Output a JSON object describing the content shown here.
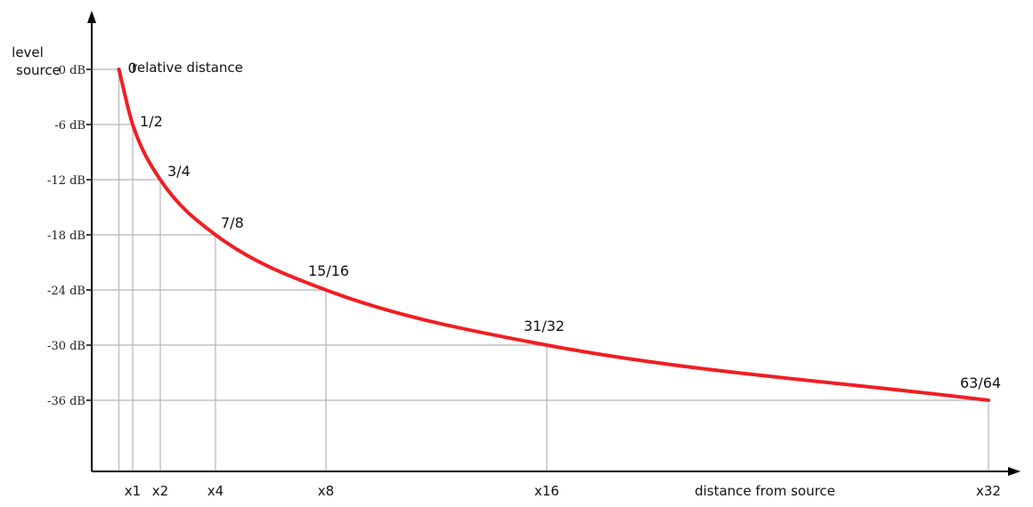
{
  "chart_data": {
    "type": "line",
    "title": "",
    "ylabel_top": "level",
    "ylabel_source": "source",
    "xlabel": "distance from source",
    "curve_label": "relative distance",
    "curve_color": "#f01e23",
    "grid": true,
    "y_ticks": [
      "0 dB",
      "-6 dB",
      "-12 dB",
      "-18 dB",
      "-24 dB",
      "-30 dB",
      "-36 dB"
    ],
    "x_ticks": [
      "x1",
      "x2",
      "x4",
      "x8",
      "x16",
      "x32"
    ],
    "points": [
      {
        "distance": 0.5,
        "level_db": 0,
        "label": "0"
      },
      {
        "distance": 1,
        "level_db": -6,
        "label": "1/2"
      },
      {
        "distance": 2,
        "level_db": -12,
        "label": "3/4"
      },
      {
        "distance": 4,
        "level_db": -18,
        "label": "7/8"
      },
      {
        "distance": 8,
        "level_db": -24,
        "label": "15/16"
      },
      {
        "distance": 16,
        "level_db": -30,
        "label": "31/32"
      },
      {
        "distance": 32,
        "level_db": -36,
        "label": "63/64"
      }
    ],
    "xlim": [
      0,
      32
    ],
    "ylim": [
      -36,
      0
    ]
  }
}
